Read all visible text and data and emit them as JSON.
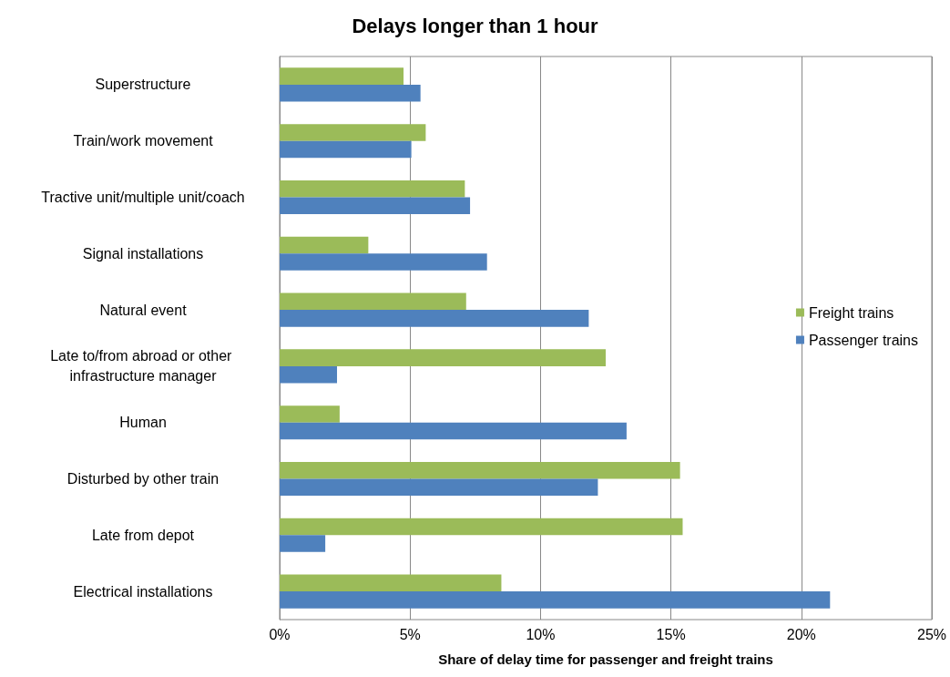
{
  "chart_data": {
    "type": "bar",
    "orientation": "horizontal",
    "title": "Delays longer than 1 hour",
    "xlabel": "Share of delay time for passenger and freight trains",
    "categories": [
      "Superstructure",
      "Train/work movement",
      "Tractive unit/multiple unit/coach",
      "Signal installations",
      "Natural event",
      "Late to/from abroad or other infrastructure manager",
      "Human",
      "Disturbed by other train",
      "Late from depot",
      "Electrical installations"
    ],
    "series": [
      {
        "name": "Freight trains",
        "color": "#9bbb59",
        "values": [
          4.75,
          5.6,
          7.1,
          3.4,
          7.15,
          12.5,
          2.3,
          15.35,
          15.45,
          8.5
        ]
      },
      {
        "name": "Passenger trains",
        "color": "#4f81bd",
        "values": [
          5.4,
          5.05,
          7.3,
          7.95,
          11.85,
          2.2,
          13.3,
          12.2,
          1.75,
          21.1
        ]
      }
    ],
    "xlim": [
      0,
      25
    ],
    "xticks": [
      {
        "value": 0,
        "label": "0%"
      },
      {
        "value": 5,
        "label": "5%"
      },
      {
        "value": 10,
        "label": "10%"
      },
      {
        "value": 15,
        "label": "15%"
      },
      {
        "value": 20,
        "label": "20%"
      },
      {
        "value": 25,
        "label": "25%"
      }
    ],
    "grid": "x",
    "legend": "right"
  }
}
